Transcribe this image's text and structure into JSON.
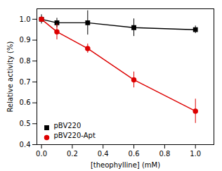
{
  "chart_data": {
    "type": "line",
    "xlabel": "[theophylline] (mM)",
    "ylabel": "Relative activity (%)",
    "x": [
      0.0,
      0.1,
      0.3,
      0.6,
      1.0
    ],
    "series": [
      {
        "name": "pBV220",
        "color": "#000000",
        "marker": "square",
        "values": [
          1.0,
          0.983,
          0.983,
          0.96,
          0.95
        ],
        "yerr": [
          0.022,
          0.022,
          0.058,
          0.042,
          0.018
        ]
      },
      {
        "name": "pBV220-Apt",
        "color": "#dd0000",
        "marker": "circle",
        "values": [
          1.0,
          0.94,
          0.86,
          0.71,
          0.56
        ],
        "yerr": [
          0.006,
          0.038,
          0.022,
          0.038,
          0.058
        ]
      }
    ],
    "xlim": [
      -0.03,
      1.12
    ],
    "ylim": [
      0.4,
      1.05
    ],
    "xticks": [
      {
        "value": 0.0,
        "label": "0.0"
      },
      0.2,
      0.4,
      0.6,
      0.8,
      {
        "value": 1.0,
        "label": "1.0"
      }
    ],
    "yticks": [
      0.4,
      0.5,
      0.6,
      0.7,
      0.8,
      0.9,
      {
        "value": 1.0,
        "label": "1.0"
      }
    ],
    "grid": false,
    "legend": "lower left"
  }
}
